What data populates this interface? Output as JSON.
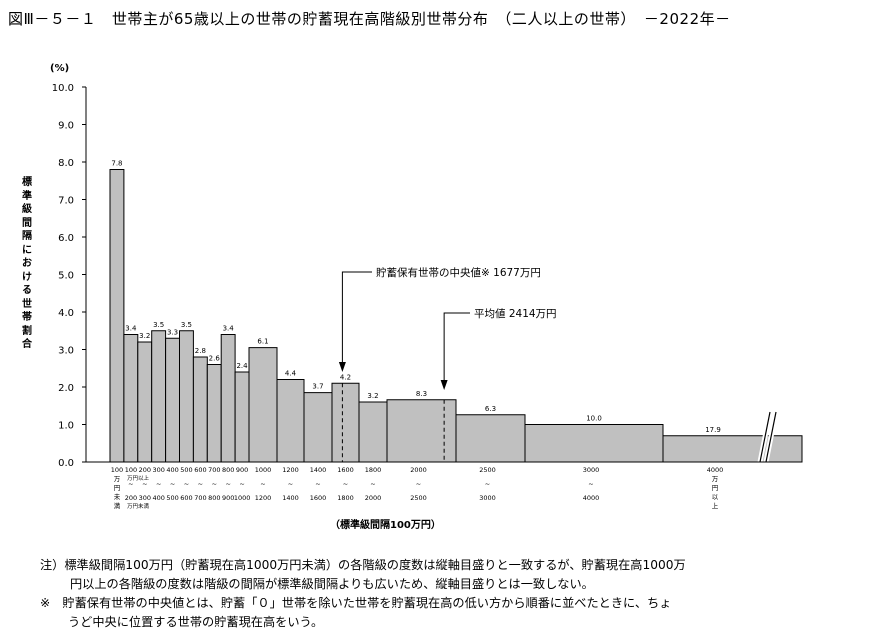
{
  "title": "図Ⅲ－５－１　世帯主が65歳以上の世帯の貯蓄現在高階級別世帯分布　（二人以上の世帯）　－2022年－",
  "chart_data": {
    "type": "bar",
    "ylabel": "標準級間隔における世帯割合",
    "yunit": "(%)",
    "xlabel": "（標準級間隔100万円）",
    "ylim": [
      0,
      10
    ],
    "yticks": [
      "0.0",
      "1.0",
      "2.0",
      "3.0",
      "4.0",
      "5.0",
      "6.0",
      "7.0",
      "8.0",
      "9.0",
      "10.0"
    ],
    "bars": [
      {
        "from": 0,
        "to": 100,
        "value": 7.8,
        "label": "7.8"
      },
      {
        "from": 100,
        "to": 200,
        "value": 3.4,
        "label": "3.4"
      },
      {
        "from": 200,
        "to": 300,
        "value": 3.2,
        "label": "3.2"
      },
      {
        "from": 300,
        "to": 400,
        "value": 3.5,
        "label": "3.5"
      },
      {
        "from": 400,
        "to": 500,
        "value": 3.3,
        "label": "3.3"
      },
      {
        "from": 500,
        "to": 600,
        "value": 3.5,
        "label": "3.5"
      },
      {
        "from": 600,
        "to": 700,
        "value": 2.8,
        "label": "2.8"
      },
      {
        "from": 700,
        "to": 800,
        "value": 2.6,
        "label": "2.6"
      },
      {
        "from": 800,
        "to": 900,
        "value": 3.4,
        "label": "3.4"
      },
      {
        "from": 900,
        "to": 1000,
        "value": 2.4,
        "label": "2.4"
      },
      {
        "from": 1000,
        "to": 1200,
        "value": 3.05,
        "label": "6.1"
      },
      {
        "from": 1200,
        "to": 1400,
        "value": 2.2,
        "label": "4.4"
      },
      {
        "from": 1400,
        "to": 1600,
        "value": 1.85,
        "label": "3.7"
      },
      {
        "from": 1600,
        "to": 1800,
        "value": 2.1,
        "label": "4.2"
      },
      {
        "from": 1800,
        "to": 2000,
        "value": 1.6,
        "label": "3.2"
      },
      {
        "from": 2000,
        "to": 2500,
        "value": 1.66,
        "label": "8.3"
      },
      {
        "from": 2500,
        "to": 3000,
        "value": 1.26,
        "label": "6.3"
      },
      {
        "from": 3000,
        "to": 4000,
        "value": 1.0,
        "label": "10.0"
      },
      {
        "from": 4000,
        "to": null,
        "value": 0.7,
        "label": "17.9"
      }
    ],
    "xtick_labels": [
      {
        "top": "100",
        "mid": "万円",
        "bot": "未満"
      },
      {
        "top": "100",
        "mid": "~",
        "bot": "200"
      },
      {
        "top": "200",
        "mid": "~",
        "bot": "300"
      },
      {
        "top": "300",
        "mid": "~",
        "bot": "400"
      },
      {
        "top": "400",
        "mid": "~",
        "bot": "500"
      },
      {
        "top": "500",
        "mid": "~",
        "bot": "600"
      },
      {
        "top": "600",
        "mid": "~",
        "bot": "700"
      },
      {
        "top": "700",
        "mid": "~",
        "bot": "800"
      },
      {
        "top": "800",
        "mid": "~",
        "bot": "900"
      },
      {
        "top": "900",
        "mid": "~",
        "bot": "1000"
      },
      {
        "top": "1000",
        "mid": "~",
        "bot": "1200"
      },
      {
        "top": "1200",
        "mid": "~",
        "bot": "1400"
      },
      {
        "top": "1400",
        "mid": "~",
        "bot": "1600"
      },
      {
        "top": "1600",
        "mid": "~",
        "bot": "1800"
      },
      {
        "top": "1800",
        "mid": "~",
        "bot": "2000"
      },
      {
        "top": "2000",
        "mid": "~",
        "bot": "2500"
      },
      {
        "top": "2500",
        "mid": "~",
        "bot": "3000"
      },
      {
        "top": "3000",
        "mid": "~",
        "bot": "4000"
      },
      {
        "top": "4000",
        "mid": "万円",
        "bot": "以上"
      }
    ],
    "x_sublabels": [
      "万円以上",
      "万円未満"
    ],
    "annotations": [
      {
        "text": "貯蓄保有世帯の中央値※ 1677万円",
        "x": 1677
      },
      {
        "text": "平均値 2414万円",
        "x": 2414
      }
    ],
    "colors": {
      "bar_fill": "#c0c0c0",
      "bar_stroke": "#000000"
    }
  },
  "notes": {
    "line1": "注）標準級間隔100万円（貯蓄現在高1000万円未満）の各階級の度数は縦軸目盛りと一致するが、貯蓄現在高1000万",
    "line2": "円以上の各階級の度数は階級の間隔が標準級間隔よりも広いため、縦軸目盛りとは一致しない。",
    "line3": "※　貯蓄保有世帯の中央値とは、貯蓄「０」世帯を除いた世帯を貯蓄現在高の低い方から順番に並べたときに、ちょ",
    "line4": "うど中央に位置する世帯の貯蓄現在高をいう。"
  }
}
